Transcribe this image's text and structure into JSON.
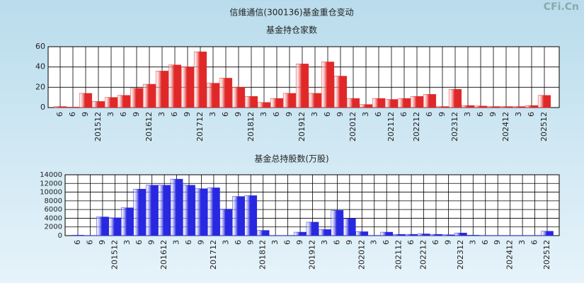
{
  "title": "信维通信(300136)基金重仓变动",
  "watermark": "CFi.Cn",
  "chart_data": [
    {
      "type": "bar",
      "title": "基金持仓家数",
      "categories": [
        "6",
        "6",
        "9",
        "201512",
        "3",
        "6",
        "9",
        "201612",
        "3",
        "6",
        "9",
        "201712",
        "3",
        "6",
        "9",
        "201812",
        "3",
        "6",
        "9",
        "201912",
        "3",
        "6",
        "9",
        "202012",
        "3",
        "6",
        "202112",
        "6",
        "202212",
        "6",
        "9",
        "202312",
        "3",
        "6",
        "9",
        "202412",
        "3",
        "6",
        "202512"
      ],
      "values": [
        1,
        0.5,
        14,
        6,
        10,
        12,
        19,
        23,
        36,
        42,
        40,
        55,
        24,
        29,
        20,
        11,
        5,
        9,
        14,
        43,
        14,
        45,
        31,
        9,
        3,
        9,
        8,
        9,
        11,
        13,
        1,
        18,
        2,
        1.5,
        1,
        1,
        1,
        2,
        12
      ],
      "color": "#e02828",
      "ylim": [
        0,
        60
      ],
      "yticks": [
        0,
        20,
        40,
        60
      ],
      "grid": true
    },
    {
      "type": "bar",
      "title": "基金总持股数(万股)",
      "categories": [
        "6",
        "6",
        "9",
        "201512",
        "3",
        "6",
        "9",
        "201612",
        "3",
        "6",
        "9",
        "201712",
        "3",
        "6",
        "9",
        "201812",
        "3",
        "6",
        "9",
        "201912",
        "3",
        "6",
        "9",
        "202012",
        "3",
        "6",
        "202112",
        "6",
        "202212",
        "6",
        "9",
        "202312",
        "3",
        "6",
        "9",
        "202412",
        "3",
        "6",
        "202512"
      ],
      "values": [
        100,
        50,
        4300,
        4100,
        6400,
        10700,
        11600,
        11600,
        13000,
        11600,
        10800,
        11000,
        6100,
        9000,
        9200,
        1200,
        50,
        50,
        800,
        3100,
        1400,
        5800,
        3900,
        900,
        50,
        800,
        300,
        300,
        400,
        300,
        200,
        600,
        100,
        50,
        50,
        50,
        50,
        50,
        1000
      ],
      "color": "#2828e0",
      "ylim": [
        0,
        14000
      ],
      "yticks": [
        0,
        2000,
        4000,
        6000,
        8000,
        10000,
        12000,
        14000
      ],
      "grid": true
    }
  ]
}
